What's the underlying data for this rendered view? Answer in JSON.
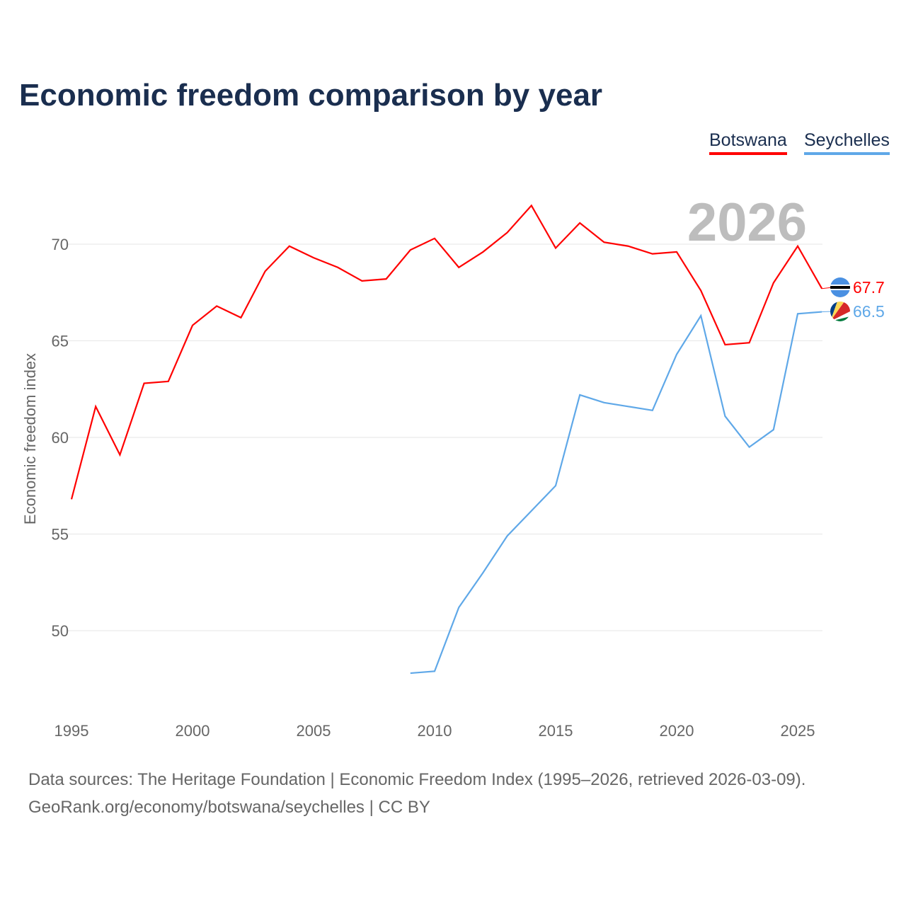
{
  "chart_data": {
    "type": "line",
    "title": "Economic freedom comparison by year",
    "ylabel": "Economic freedom index",
    "xlabel": "",
    "ylim": [
      46,
      74
    ],
    "xlim": [
      1995,
      2026
    ],
    "yticks": [
      50,
      55,
      60,
      65,
      70
    ],
    "xticks": [
      1995,
      2000,
      2005,
      2010,
      2015,
      2020,
      2025
    ],
    "grid": true,
    "legend_placement": "top-right",
    "watermark_year": "2026",
    "series": [
      {
        "name": "Botswana",
        "color": "#ff0000",
        "end_label": "67.7",
        "x": [
          1995,
          1996,
          1997,
          1998,
          1999,
          2000,
          2001,
          2002,
          2003,
          2004,
          2005,
          2006,
          2007,
          2008,
          2009,
          2010,
          2011,
          2012,
          2013,
          2014,
          2015,
          2016,
          2017,
          2018,
          2019,
          2020,
          2021,
          2022,
          2023,
          2024,
          2025,
          2026
        ],
        "values": [
          56.8,
          61.6,
          59.1,
          62.8,
          62.9,
          65.8,
          66.8,
          66.2,
          68.6,
          69.9,
          69.3,
          68.8,
          68.1,
          68.2,
          69.7,
          70.3,
          68.8,
          69.6,
          70.6,
          72.0,
          69.8,
          71.1,
          70.1,
          69.9,
          69.5,
          69.6,
          67.6,
          64.8,
          64.9,
          68.0,
          69.9,
          67.7
        ]
      },
      {
        "name": "Seychelles",
        "color": "#5fa8e8",
        "end_label": "66.5",
        "x": [
          2009,
          2010,
          2011,
          2012,
          2013,
          2014,
          2015,
          2016,
          2017,
          2018,
          2019,
          2020,
          2021,
          2022,
          2023,
          2024,
          2025,
          2026
        ],
        "values": [
          47.8,
          47.9,
          51.2,
          53.0,
          54.9,
          56.2,
          57.5,
          62.2,
          61.8,
          61.6,
          61.4,
          64.3,
          66.3,
          61.1,
          59.5,
          60.4,
          66.4,
          66.5
        ]
      }
    ]
  },
  "footer": {
    "line1": "Data sources: The Heritage Foundation | Economic Freedom Index (1995–2026, retrieved 2026-03-09).",
    "line2": "GeoRank.org/economy/botswana/seychelles | CC BY"
  }
}
